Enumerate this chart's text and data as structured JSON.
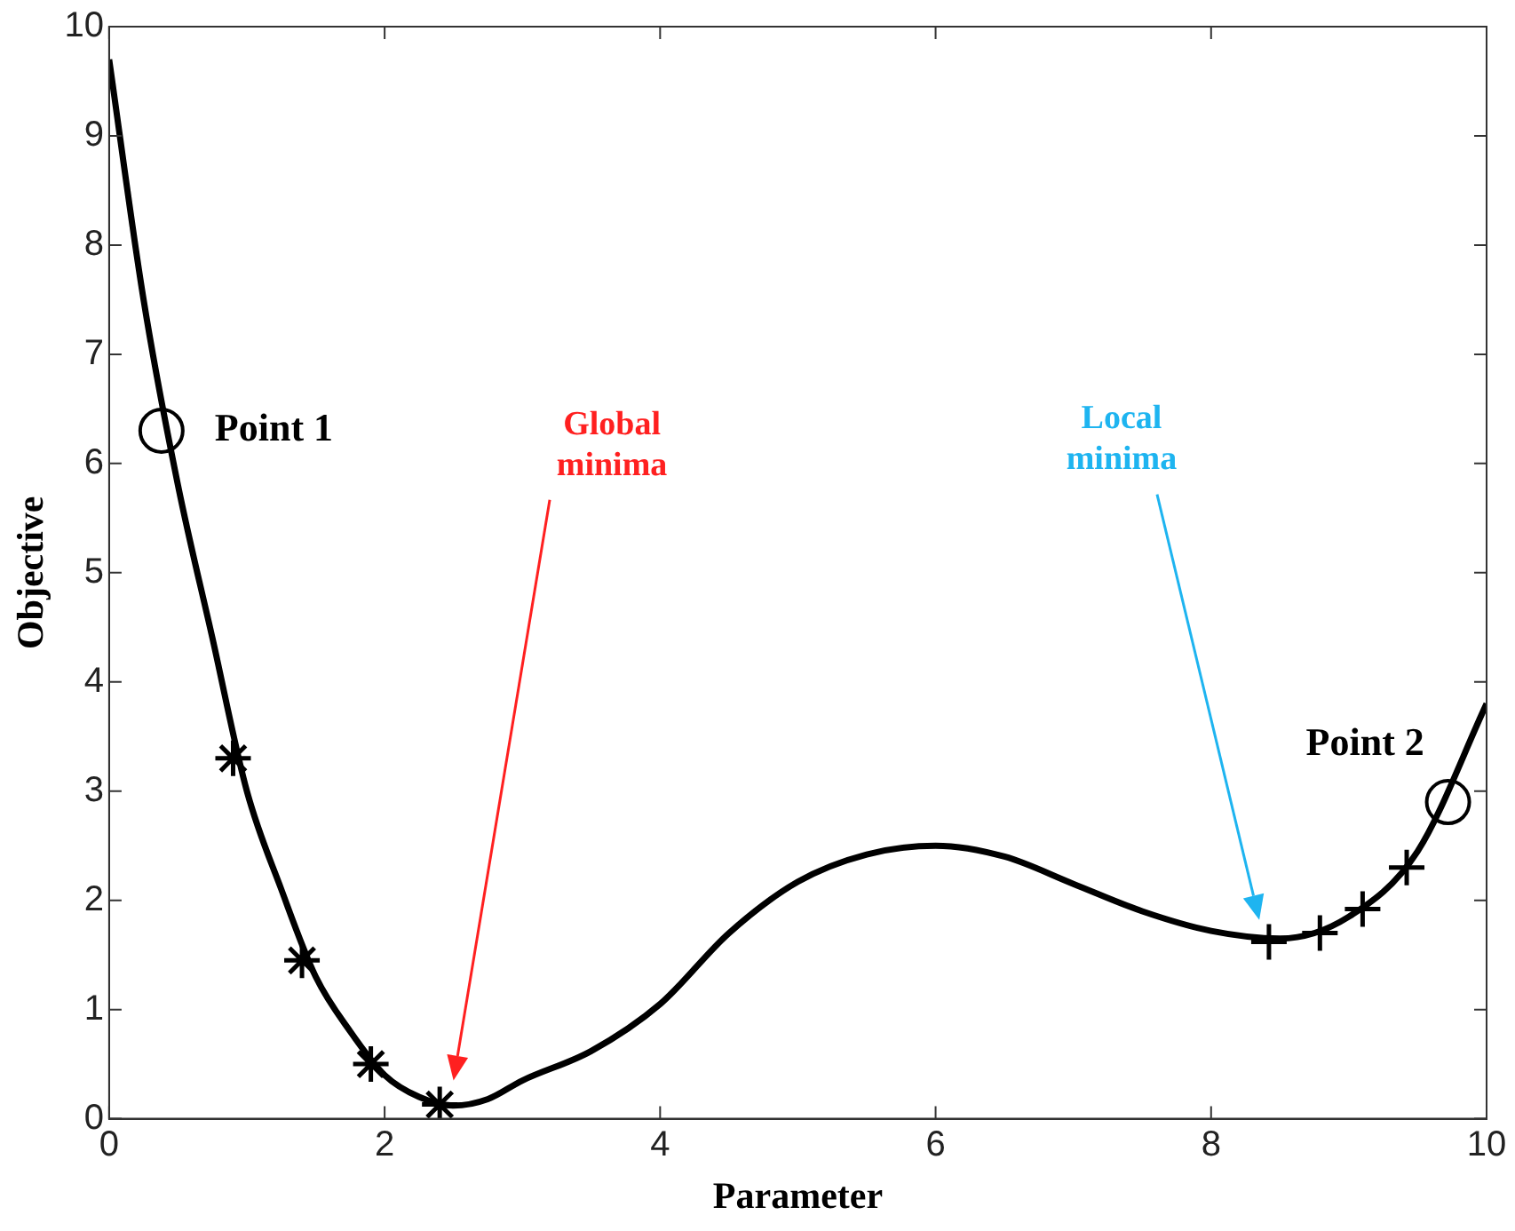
{
  "chart_data": {
    "type": "line",
    "xlabel": "Parameter",
    "ylabel": "Objective",
    "xlim": [
      0,
      10
    ],
    "xticks": [
      0,
      2,
      4,
      6,
      8,
      10
    ],
    "ylim": [
      0,
      10
    ],
    "yticks": [
      0,
      1,
      2,
      3,
      4,
      5,
      6,
      7,
      8,
      9,
      10
    ],
    "grid": false,
    "series": [
      {
        "color": "#000000",
        "marker": "none",
        "x": [
          0,
          0.25,
          0.5,
          0.75,
          1,
          1.25,
          1.5,
          1.75,
          2,
          2.25,
          2.5,
          2.75,
          3,
          3.5,
          4,
          4.5,
          5,
          5.5,
          6,
          6.5,
          7,
          7.5,
          8,
          8.5,
          9,
          9.5,
          10
        ],
        "values": [
          9.7,
          7.5,
          5.8,
          4.4,
          3.0,
          2.1,
          1.3,
          0.8,
          0.4,
          0.2,
          0.12,
          0.18,
          0.35,
          0.62,
          1.05,
          1.7,
          2.17,
          2.42,
          2.5,
          2.4,
          2.15,
          1.9,
          1.72,
          1.65,
          1.85,
          2.45,
          3.8
        ]
      },
      {
        "type": "scatter",
        "color": "#000000",
        "x": [
          0.9,
          1.4,
          1.9,
          2.4
        ],
        "values": [
          3.3,
          1.45,
          0.5,
          0.13
        ]
      },
      {
        "type": "scatter",
        "color": "#000000",
        "marker": "cross",
        "x": [
          8.42,
          8.79,
          9.1,
          9.42
        ],
        "values": [
          1.62,
          1.7,
          1.92,
          2.3
        ]
      },
      {
        "type": "scatter",
        "color": "#000000",
        "marker": "circle",
        "x": [
          0.38,
          9.72
        ],
        "values": [
          6.3,
          2.9
        ]
      }
    ],
    "annotations": [
      {
        "text": "Point 1",
        "x": 0.38,
        "y": 6.3
      },
      {
        "text": "Point 2",
        "x": 9.72,
        "y": 2.9
      },
      "Global\nminima",
      "Local\nminima"
    ]
  }
}
